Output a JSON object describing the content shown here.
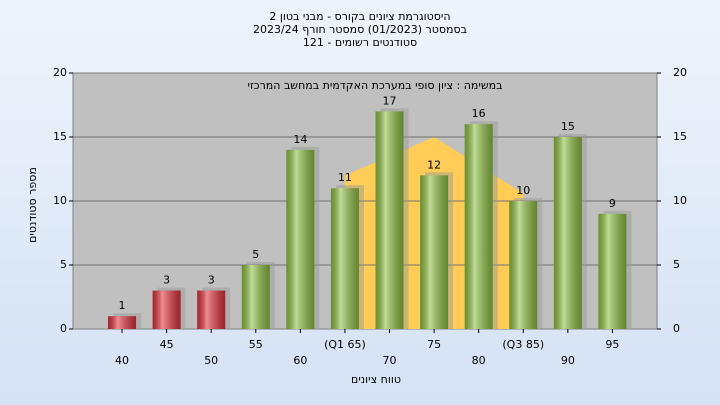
{
  "chart_data": {
    "type": "bar",
    "title": [
      "היסטוגרמת ציונים בקורס - מבני בטון 2",
      "בסמסטר  (01/2023)  סמסטר חורף 2023/24",
      "סטודנטים רשומים - 121"
    ],
    "annotation": "במשימה : ציון סופי במערכת האקדמית במחשב המרכזי",
    "x_label": "טווח ציונים",
    "y_label": "מספר סטודנטים",
    "x": [
      40,
      45,
      50,
      55,
      60,
      65,
      70,
      75,
      80,
      85,
      90,
      95
    ],
    "values": [
      1,
      3,
      3,
      5,
      14,
      11,
      17,
      12,
      16,
      10,
      15,
      9
    ],
    "colors": [
      "#e0303a",
      "#e0303a",
      "#e0303a",
      "#8cc040",
      "#8cc040",
      "#8cc040",
      "#8cc040",
      "#8cc040",
      "#8cc040",
      "#8cc040",
      "#8cc040",
      "#8cc040"
    ],
    "xlim": [
      34.5,
      100
    ],
    "xticks": [
      40,
      45,
      50,
      55,
      60,
      {
        "value": 65,
        "label": "(Q1 65)"
      },
      70,
      75,
      80,
      {
        "value": 85,
        "label": "(Q3 85)"
      },
      90,
      95
    ],
    "ylim": [
      0,
      20
    ],
    "yticks": [
      0,
      5,
      10,
      15,
      20
    ],
    "y2lim": [
      0,
      20
    ],
    "y2ticks": [
      0,
      5,
      10,
      15,
      20
    ],
    "grid": true,
    "distribution": {
      "color": "#ffcc55",
      "x": [
        65,
        65,
        75,
        85,
        85
      ],
      "y": [
        0,
        12,
        15,
        10.6,
        0
      ]
    }
  }
}
